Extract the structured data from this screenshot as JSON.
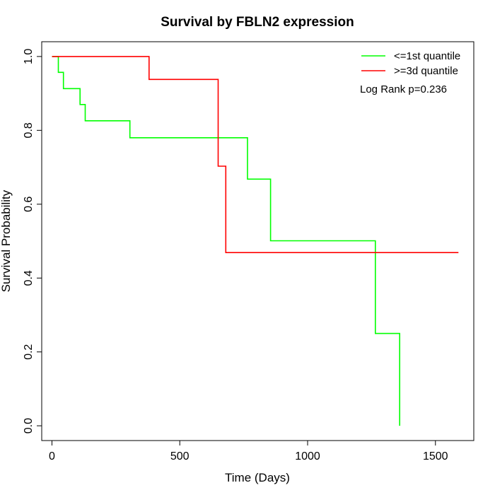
{
  "chart_data": {
    "type": "line",
    "step": true,
    "title": "Survival by FBLN2 expression",
    "xlabel": "Time (Days)",
    "ylabel": "Survival Probability",
    "xlim": [
      -40,
      1650
    ],
    "ylim": [
      -0.04,
      1.04
    ],
    "x_ticks": [
      0,
      500,
      1000,
      1500
    ],
    "x_tick_labels": [
      "0",
      "500",
      "1000",
      "1500"
    ],
    "y_ticks": [
      0.0,
      0.2,
      0.4,
      0.6,
      0.8,
      1.0
    ],
    "y_tick_labels": [
      "0.0",
      "0.2",
      "0.4",
      "0.6",
      "0.8",
      "1.0"
    ],
    "grid": false,
    "legend_position": "top-right",
    "annotation": "Log Rank p=0.236",
    "series": [
      {
        "name": "<=1st quantile",
        "color": "#00ff00",
        "x": [
          0,
          25,
          25,
          45,
          45,
          110,
          110,
          130,
          130,
          305,
          305,
          765,
          765,
          855,
          855,
          1265,
          1265,
          1360,
          1360
        ],
        "y": [
          1.0,
          1.0,
          0.957,
          0.957,
          0.913,
          0.913,
          0.87,
          0.87,
          0.826,
          0.826,
          0.78,
          0.78,
          0.668,
          0.668,
          0.501,
          0.501,
          0.25,
          0.25,
          0.0
        ]
      },
      {
        "name": ">=3d quantile",
        "color": "#ff0000",
        "x": [
          0,
          380,
          380,
          650,
          650,
          680,
          680,
          1590
        ],
        "y": [
          1.0,
          1.0,
          0.938,
          0.938,
          0.703,
          0.703,
          0.469,
          0.469
        ]
      }
    ]
  }
}
